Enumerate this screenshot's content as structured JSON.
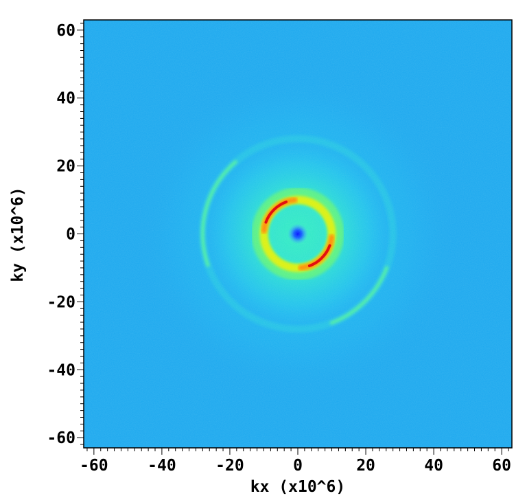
{
  "chart_data": {
    "type": "heatmap",
    "title": "",
    "xlabel": "kx (x10^6)",
    "ylabel": "ky (x10^6)",
    "xlim": [
      -63,
      63
    ],
    "ylim": [
      -63,
      63
    ],
    "x_ticks": [
      {
        "value": -60,
        "label": "-60"
      },
      {
        "value": -40,
        "label": "-40"
      },
      {
        "value": -20,
        "label": "-20"
      },
      {
        "value": 0,
        "label": "0"
      },
      {
        "value": 20,
        "label": "20"
      },
      {
        "value": 40,
        "label": "40"
      },
      {
        "value": 60,
        "label": "60"
      }
    ],
    "y_ticks": [
      {
        "value": 60,
        "label": "60"
      },
      {
        "value": 40,
        "label": "40"
      },
      {
        "value": 20,
        "label": "20"
      },
      {
        "value": 0,
        "label": "0"
      },
      {
        "value": -20,
        "label": "-20"
      },
      {
        "value": -40,
        "label": "-40"
      },
      {
        "value": -60,
        "label": "-60"
      }
    ],
    "minor_tick_step": 2,
    "colormap": "jet",
    "background_color": "#1aa8ee",
    "features": [
      {
        "name": "central dip",
        "center": [
          0,
          0
        ],
        "radius": 3,
        "intensity": "low"
      },
      {
        "name": "bright ring",
        "center": [
          0,
          0
        ],
        "radius": 10,
        "intensity": "high",
        "peak_angles_deg": [
          135,
          315
        ]
      },
      {
        "name": "diffuse halo",
        "center": [
          0,
          0
        ],
        "radius": 20,
        "intensity": "medium"
      },
      {
        "name": "outer arc",
        "center": [
          0,
          0
        ],
        "radius": 28,
        "intensity": "weak",
        "arc_angles_deg": [
          [
            130,
            200
          ],
          [
            290,
            340
          ]
        ]
      }
    ],
    "grid": false,
    "legend": "none"
  }
}
